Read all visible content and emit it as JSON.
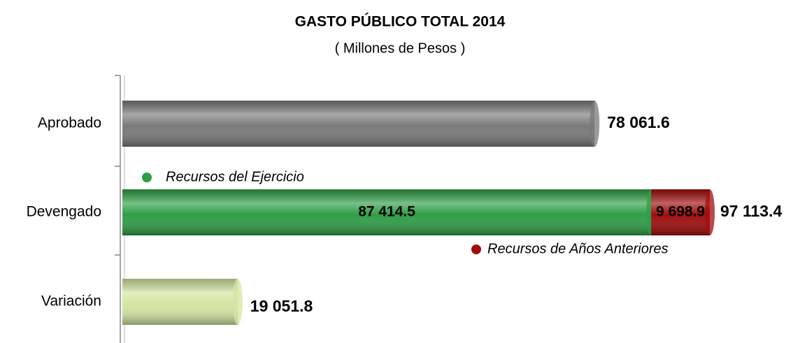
{
  "chart_data": {
    "type": "bar",
    "orientation": "horizontal",
    "title": "GASTO PÚBLICO TOTAL 2014",
    "subtitle": "( Millones de Pesos )",
    "categories": [
      "Aprobado",
      "Devengado",
      "Variación"
    ],
    "series": [
      {
        "color": "#7a7a7a",
        "values": [
          78061.6,
          null,
          null
        ],
        "value_labels": [
          "78 061.6",
          null,
          null
        ]
      },
      {
        "name": "Recursos del Ejercicio",
        "color": "#2f9e47",
        "values": [
          null,
          87414.5,
          null
        ],
        "value_labels": [
          null,
          "87 414.5",
          null
        ]
      },
      {
        "name": "Recursos de Años Anteriores",
        "color": "#a00d0d",
        "values": [
          null,
          9698.9,
          null
        ],
        "value_labels": [
          null,
          "9 698.9",
          null
        ]
      },
      {
        "color": "#d3e6a0",
        "values": [
          null,
          null,
          19051.8
        ],
        "value_labels": [
          null,
          null,
          "19 051.8"
        ]
      }
    ],
    "total_value": 97113.4,
    "total_label": "97 113.4",
    "xlim": [
      0,
      100000
    ],
    "stacked": true
  }
}
